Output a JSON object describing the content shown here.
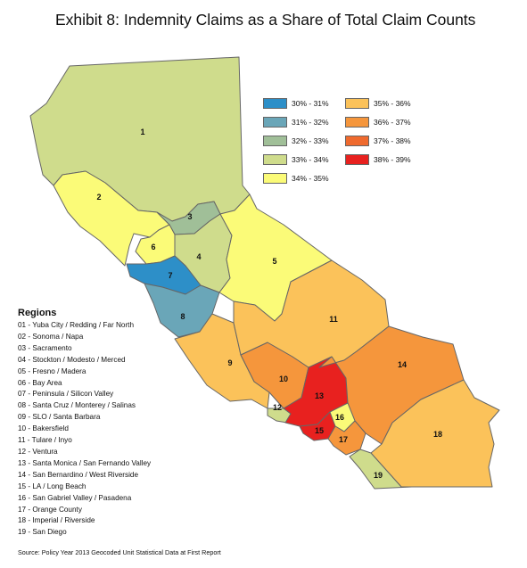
{
  "title": "Exhibit 8: Indemnity Claims as a Share of Total Claim Counts",
  "legend": [
    {
      "label": "30% - 31%",
      "color": "#2d8fc8"
    },
    {
      "label": "31% - 32%",
      "color": "#6aa6b8"
    },
    {
      "label": "32% - 33%",
      "color": "#a0bf98"
    },
    {
      "label": "33% - 34%",
      "color": "#cfdc8c"
    },
    {
      "label": "34% - 35%",
      "color": "#fbfb78"
    },
    {
      "label": "35% - 36%",
      "color": "#fbc25a"
    },
    {
      "label": "36% - 37%",
      "color": "#f5963c"
    },
    {
      "label": "37% - 38%",
      "color": "#ef6a2e"
    },
    {
      "label": "38% - 39%",
      "color": "#e8211f"
    }
  ],
  "regions_title": "Regions",
  "regions": [
    {
      "id": "1",
      "code": "01",
      "name": "Yuba City / Redding / Far North",
      "range": "33% - 34%"
    },
    {
      "id": "2",
      "code": "02",
      "name": "Sonoma / Napa",
      "range": "34% - 35%"
    },
    {
      "id": "3",
      "code": "03",
      "name": "Sacramento",
      "range": "32% - 33%"
    },
    {
      "id": "4",
      "code": "04",
      "name": "Stockton / Modesto / Merced",
      "range": "33% - 34%"
    },
    {
      "id": "5",
      "code": "05",
      "name": "Fresno / Madera",
      "range": "34% - 35%"
    },
    {
      "id": "6",
      "code": "06",
      "name": "Bay Area",
      "range": "34% - 35%"
    },
    {
      "id": "7",
      "code": "07",
      "name": "Peninsula / Silicon Valley",
      "range": "30% - 31%"
    },
    {
      "id": "8",
      "code": "08",
      "name": "Santa Cruz / Monterey / Salinas",
      "range": "31% - 32%"
    },
    {
      "id": "9",
      "code": "09",
      "name": "SLO / Santa Barbara",
      "range": "35% - 36%"
    },
    {
      "id": "10",
      "code": "10",
      "name": "Bakersfield",
      "range": "36% - 37%"
    },
    {
      "id": "11",
      "code": "11",
      "name": "Tulare / Inyo",
      "range": "35% - 36%"
    },
    {
      "id": "12",
      "code": "12",
      "name": "Ventura",
      "range": "33% - 34%"
    },
    {
      "id": "13",
      "code": "13",
      "name": "Santa Monica / San Fernando Valley",
      "range": "38% - 39%"
    },
    {
      "id": "14",
      "code": "14",
      "name": "San Bernardino / West Riverside",
      "range": "36% - 37%"
    },
    {
      "id": "15",
      "code": "15",
      "name": "LA / Long Beach",
      "range": "38% - 39%"
    },
    {
      "id": "16",
      "code": "16",
      "name": "San Gabriel Valley / Pasadena",
      "range": "34% - 35%"
    },
    {
      "id": "17",
      "code": "17",
      "name": "Orange County",
      "range": "36% - 37%"
    },
    {
      "id": "18",
      "code": "18",
      "name": "Imperial / Riverside",
      "range": "35% - 36%"
    },
    {
      "id": "19",
      "code": "19",
      "name": "San Diego",
      "range": "33% - 34%"
    }
  ],
  "source": "Source: Policy Year 2013 Geocoded Unit Statistical Data at First Report"
}
